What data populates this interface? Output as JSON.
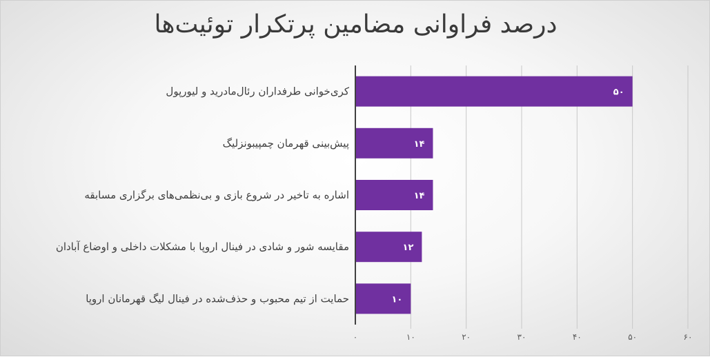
{
  "chart_data": {
    "type": "bar",
    "orientation": "horizontal",
    "title": "درصد فراوانی مضامین پرتکرار توئیت‌ها",
    "categories": [
      "کری‌خوانی طرفداران رئال‌مادرید و لیورپول",
      "پیش‌بینی قهرمان چمپیبونزلیگ",
      "اشاره به تاخیر در شروع بازی و بی‌نظمی‌های برگزاری مسابقه",
      "مقایسه شور و شادی در فینال اروپا با مشکلات داخلی و اوضاع آبادان",
      "حمایت از تیم محبوب و حذف‌شده در فینال لیگ قهرمانان اروپا"
    ],
    "values": [
      50,
      14,
      14,
      12,
      10
    ],
    "data_labels": [
      "۵۰",
      "۱۴",
      "۱۴",
      "۱۲",
      "۱۰"
    ],
    "ticks": [
      0,
      10,
      20,
      30,
      40,
      50,
      60
    ],
    "tick_labels": [
      "۰",
      "۱۰",
      "۲۰",
      "۳۰",
      "۴۰",
      "۵۰",
      "۶۰"
    ],
    "xlim": [
      0,
      60
    ],
    "grid": true,
    "legend": "none",
    "bar_color": "#7030a0",
    "grid_color": "#c8c8c8",
    "axis_color": "#404040"
  }
}
